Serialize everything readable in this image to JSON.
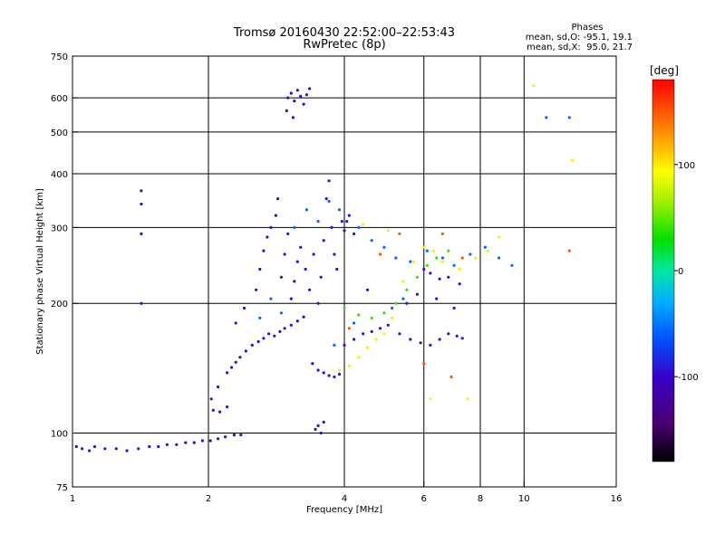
{
  "chart_data": {
    "type": "scatter",
    "title": "Tromsø 20160430 22:52:00–22:53:43",
    "subtitle": "RwPretec (8p)",
    "xlabel": "Frequency [MHz]",
    "ylabel": "Stationary phase Virtual Height [km]",
    "x_scale": "log",
    "y_scale": "log",
    "xlim": [
      1,
      16
    ],
    "ylim": [
      75,
      750
    ],
    "x_ticks": [
      1,
      2,
      4,
      6,
      8,
      10,
      16
    ],
    "x_tick_labels": [
      "1",
      "2",
      "4",
      "6",
      "8",
      "10",
      "16"
    ],
    "y_ticks": [
      75,
      100,
      200,
      300,
      400,
      500,
      600,
      750
    ],
    "y_tick_labels": [
      "75",
      "100",
      "200",
      "300",
      "400",
      "500",
      "600",
      "750"
    ],
    "grid_x": [
      2,
      4,
      6,
      8,
      10
    ],
    "grid_y": [
      100,
      200,
      300,
      400,
      500,
      600
    ],
    "grid": true,
    "phases_box": {
      "title": "Phases",
      "line1": "mean, sd,O: -95.1, 19.1",
      "line2": "mean, sd,X:  95.0, 21.7"
    },
    "colorbar": {
      "label": "[deg]",
      "ticks": [
        100,
        0,
        -100
      ],
      "tick_labels": [
        "100",
        "0",
        "-100"
      ],
      "range": [
        -180,
        180
      ]
    },
    "series": [
      {
        "phase": -95,
        "points": [
          [
            1.02,
            93
          ],
          [
            1.05,
            92
          ],
          [
            1.09,
            91
          ],
          [
            1.12,
            93
          ],
          [
            1.18,
            92
          ],
          [
            1.25,
            92
          ],
          [
            1.32,
            91
          ],
          [
            1.4,
            92
          ],
          [
            1.48,
            93
          ],
          [
            1.55,
            93
          ],
          [
            1.62,
            94
          ],
          [
            1.7,
            94
          ],
          [
            1.78,
            95
          ],
          [
            1.86,
            95
          ],
          [
            1.94,
            96
          ],
          [
            2.02,
            96
          ],
          [
            2.1,
            97
          ],
          [
            2.18,
            98
          ],
          [
            2.28,
            99
          ],
          [
            2.36,
            99
          ],
          [
            2.05,
            113
          ],
          [
            2.12,
            112
          ],
          [
            2.2,
            115
          ],
          [
            2.03,
            120
          ],
          [
            2.1,
            128
          ],
          [
            2.2,
            138
          ],
          [
            2.25,
            142
          ],
          [
            2.3,
            146
          ],
          [
            2.35,
            150
          ],
          [
            2.42,
            155
          ],
          [
            2.5,
            160
          ],
          [
            2.58,
            163
          ],
          [
            2.65,
            166
          ],
          [
            2.72,
            170
          ],
          [
            2.8,
            168
          ],
          [
            2.88,
            172
          ],
          [
            2.95,
            175
          ],
          [
            3.05,
            178
          ],
          [
            3.15,
            182
          ],
          [
            3.25,
            186
          ],
          [
            2.55,
            215
          ],
          [
            2.6,
            240
          ],
          [
            2.65,
            265
          ],
          [
            2.7,
            285
          ],
          [
            2.75,
            300
          ],
          [
            2.82,
            320
          ],
          [
            2.85,
            350
          ],
          [
            2.9,
            230
          ],
          [
            2.95,
            260
          ],
          [
            3.0,
            290
          ],
          [
            3.05,
            205
          ],
          [
            3.1,
            225
          ],
          [
            3.15,
            250
          ],
          [
            3.2,
            270
          ],
          [
            3.28,
            240
          ],
          [
            3.35,
            215
          ],
          [
            3.42,
            260
          ],
          [
            3.5,
            200
          ],
          [
            3.55,
            230
          ],
          [
            3.6,
            280
          ],
          [
            3.65,
            350
          ],
          [
            3.7,
            385
          ],
          [
            3.75,
            300
          ],
          [
            3.8,
            260
          ],
          [
            3.85,
            240
          ],
          [
            3.95,
            310
          ],
          [
            4.0,
            295
          ],
          [
            4.05,
            310
          ],
          [
            4.1,
            320
          ],
          [
            4.2,
            290
          ],
          [
            3.4,
            145
          ],
          [
            3.5,
            140
          ],
          [
            3.6,
            138
          ],
          [
            3.7,
            136
          ],
          [
            3.8,
            135
          ],
          [
            3.9,
            137
          ],
          [
            4.0,
            160
          ],
          [
            4.2,
            165
          ],
          [
            4.4,
            170
          ],
          [
            4.6,
            172
          ],
          [
            4.8,
            175
          ],
          [
            5.0,
            178
          ],
          [
            5.3,
            170
          ],
          [
            5.6,
            165
          ],
          [
            5.9,
            162
          ],
          [
            6.2,
            160
          ],
          [
            6.5,
            165
          ],
          [
            6.8,
            170
          ],
          [
            7.1,
            168
          ],
          [
            7.3,
            166
          ],
          [
            3.0,
            600
          ],
          [
            3.05,
            615
          ],
          [
            3.1,
            590
          ],
          [
            3.15,
            625
          ],
          [
            3.2,
            605
          ],
          [
            3.25,
            580
          ],
          [
            3.3,
            610
          ],
          [
            3.35,
            630
          ],
          [
            2.98,
            560
          ],
          [
            3.08,
            540
          ],
          [
            3.45,
            102
          ],
          [
            3.5,
            104
          ],
          [
            3.55,
            100
          ],
          [
            3.6,
            106
          ],
          [
            1.42,
            365
          ],
          [
            1.42,
            340
          ],
          [
            1.42,
            290
          ],
          [
            1.42,
            200
          ],
          [
            2.3,
            180
          ],
          [
            2.4,
            195
          ],
          [
            6.0,
            240
          ],
          [
            6.2,
            235
          ],
          [
            6.5,
            228
          ],
          [
            6.8,
            230
          ],
          [
            7.2,
            222
          ],
          [
            5.5,
            200
          ],
          [
            5.8,
            210
          ],
          [
            6.4,
            205
          ],
          [
            7.0,
            195
          ],
          [
            4.5,
            215
          ]
        ]
      },
      {
        "phase": -60,
        "points": [
          [
            2.6,
            185
          ],
          [
            2.75,
            205
          ],
          [
            2.9,
            190
          ],
          [
            3.1,
            300
          ],
          [
            3.3,
            330
          ],
          [
            3.5,
            310
          ],
          [
            3.7,
            345
          ],
          [
            3.9,
            330
          ],
          [
            4.3,
            300
          ],
          [
            4.6,
            280
          ],
          [
            4.9,
            270
          ],
          [
            5.2,
            255
          ],
          [
            5.6,
            250
          ],
          [
            6.1,
            265
          ],
          [
            6.6,
            255
          ],
          [
            7.0,
            245
          ],
          [
            7.6,
            260
          ],
          [
            8.2,
            270
          ],
          [
            8.8,
            255
          ],
          [
            9.4,
            245
          ],
          [
            11.2,
            540
          ],
          [
            12.6,
            540
          ],
          [
            5.1,
            195
          ],
          [
            5.4,
            205
          ],
          [
            4.2,
            180
          ],
          [
            3.8,
            160
          ]
        ]
      },
      {
        "phase": 40,
        "points": [
          [
            4.0,
            195
          ],
          [
            4.3,
            188
          ],
          [
            4.6,
            185
          ],
          [
            4.9,
            190
          ],
          [
            5.2,
            200
          ],
          [
            5.5,
            215
          ],
          [
            5.8,
            230
          ],
          [
            6.1,
            245
          ],
          [
            6.4,
            255
          ],
          [
            6.8,
            265
          ]
        ]
      },
      {
        "phase": 100,
        "points": [
          [
            3.9,
            140
          ],
          [
            4.1,
            143
          ],
          [
            4.3,
            150
          ],
          [
            4.5,
            158
          ],
          [
            4.7,
            165
          ],
          [
            4.9,
            170
          ],
          [
            5.1,
            185
          ],
          [
            5.4,
            225
          ],
          [
            5.7,
            250
          ],
          [
            6.0,
            270
          ],
          [
            6.3,
            265
          ],
          [
            6.6,
            250
          ],
          [
            7.2,
            240
          ],
          [
            7.8,
            255
          ],
          [
            8.3,
            265
          ],
          [
            8.8,
            285
          ],
          [
            10.5,
            640
          ],
          [
            12.8,
            430
          ],
          [
            5.0,
            295
          ],
          [
            4.4,
            305
          ],
          [
            7.5,
            120
          ],
          [
            6.2,
            120
          ]
        ]
      },
      {
        "phase": 150,
        "points": [
          [
            4.1,
            175
          ],
          [
            4.8,
            260
          ],
          [
            5.3,
            290
          ],
          [
            6.6,
            290
          ],
          [
            7.3,
            255
          ],
          [
            12.6,
            265
          ],
          [
            6.0,
            145
          ],
          [
            6.9,
            135
          ]
        ]
      }
    ]
  }
}
